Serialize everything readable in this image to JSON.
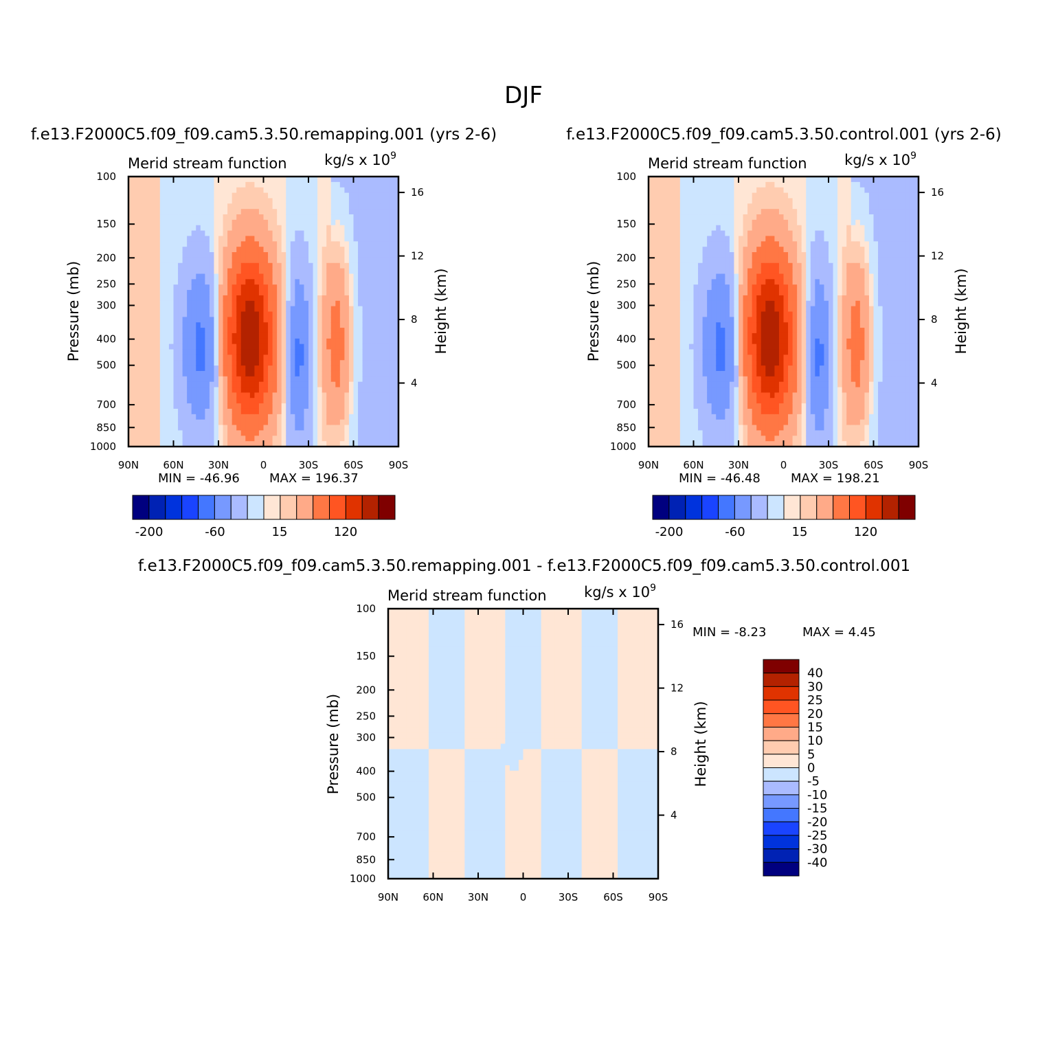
{
  "title": "DJF",
  "chart_data": [
    {
      "type": "heatmap",
      "subtitle": "f.e13.F2000C5.f09_f09.cam5.3.50.remapping.001 (yrs 2-6)",
      "left_label": "Merid stream function",
      "units_label": "kg/s x 10",
      "units_exponent": "9",
      "ylabel": "Pressure (mb)",
      "ylabel_right": "Height (km)",
      "x_ticks": [
        "90N",
        "60N",
        "30N",
        "0",
        "30S",
        "60S",
        "90S"
      ],
      "y_ticks": [
        "100",
        "150",
        "200",
        "250",
        "300",
        "400",
        "500",
        "700",
        "850",
        "1000"
      ],
      "y2_ticks": [
        "16",
        "12",
        "8",
        "4"
      ],
      "min_label": "MIN = -46.96",
      "max_label": "MAX = 196.37",
      "min": -46.96,
      "max": 196.37,
      "colorbar_ticks": [
        "-200",
        "-60",
        "15",
        "120"
      ],
      "colorbar_colors": [
        "#00007f",
        "#0022b4",
        "#0033dd",
        "#1a44ff",
        "#4477ff",
        "#7799ff",
        "#aabbff",
        "#cce5ff",
        "#ffe6d5",
        "#ffccb0",
        "#ffaa88",
        "#ff7744",
        "#ff5522",
        "#e03300",
        "#b32200",
        "#7f0000"
      ]
    },
    {
      "type": "heatmap",
      "subtitle": "f.e13.F2000C5.f09_f09.cam5.3.50.control.001 (yrs 2-6)",
      "left_label": "Merid stream function",
      "units_label": "kg/s x 10",
      "units_exponent": "9",
      "ylabel": "Pressure (mb)",
      "ylabel_right": "Height (km)",
      "x_ticks": [
        "90N",
        "60N",
        "30N",
        "0",
        "30S",
        "60S",
        "90S"
      ],
      "y_ticks": [
        "100",
        "150",
        "200",
        "250",
        "300",
        "400",
        "500",
        "700",
        "850",
        "1000"
      ],
      "y2_ticks": [
        "16",
        "12",
        "8",
        "4"
      ],
      "min_label": "MIN = -46.48",
      "max_label": "MAX = 198.21",
      "min": -46.48,
      "max": 198.21,
      "colorbar_ticks": [
        "-200",
        "-60",
        "15",
        "120"
      ],
      "colorbar_colors": [
        "#00007f",
        "#0022b4",
        "#0033dd",
        "#1a44ff",
        "#4477ff",
        "#7799ff",
        "#aabbff",
        "#cce5ff",
        "#ffe6d5",
        "#ffccb0",
        "#ffaa88",
        "#ff7744",
        "#ff5522",
        "#e03300",
        "#b32200",
        "#7f0000"
      ]
    },
    {
      "type": "heatmap",
      "subtitle": "f.e13.F2000C5.f09_f09.cam5.3.50.remapping.001 - f.e13.F2000C5.f09_f09.cam5.3.50.control.001",
      "left_label": "Merid stream function",
      "units_label": "kg/s x 10",
      "units_exponent": "9",
      "ylabel": "Pressure (mb)",
      "ylabel_right": "Height (km)",
      "x_ticks": [
        "90N",
        "60N",
        "30N",
        "0",
        "30S",
        "60S",
        "90S"
      ],
      "y_ticks": [
        "100",
        "150",
        "200",
        "250",
        "300",
        "400",
        "500",
        "700",
        "850",
        "1000"
      ],
      "y2_ticks": [
        "16",
        "12",
        "8",
        "4"
      ],
      "min_label": "MIN = -8.23",
      "max_label": "MAX = 4.45",
      "min": -8.23,
      "max": 4.45,
      "colorbar_ticks": [
        "40",
        "30",
        "25",
        "20",
        "15",
        "10",
        "5",
        "0",
        "-5",
        "-10",
        "-15",
        "-20",
        "-25",
        "-30",
        "-40"
      ],
      "colorbar_colors": [
        "#7f0000",
        "#b32200",
        "#e03300",
        "#ff5522",
        "#ff7744",
        "#ffaa88",
        "#ffccb0",
        "#ffe6d5",
        "#cce5ff",
        "#aabbff",
        "#7799ff",
        "#4477ff",
        "#1a44ff",
        "#0033dd",
        "#0022b4",
        "#00007f"
      ]
    }
  ]
}
